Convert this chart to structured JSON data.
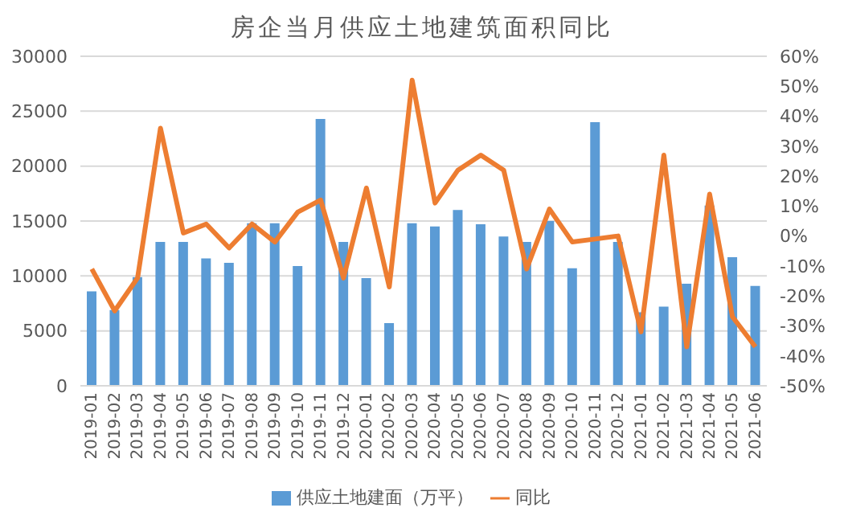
{
  "chart_data": {
    "type": "bar",
    "title": "房企当月供应土地建筑面积同比",
    "categories": [
      "2019-01",
      "2019-02",
      "2019-03",
      "2019-04",
      "2019-05",
      "2019-06",
      "2019-07",
      "2019-08",
      "2019-09",
      "2019-10",
      "2019-11",
      "2019-12",
      "2020-01",
      "2020-02",
      "2020-03",
      "2020-04",
      "2020-05",
      "2020-06",
      "2020-07",
      "2020-08",
      "2020-09",
      "2020-10",
      "2020-11",
      "2020-12",
      "2021-01",
      "2021-02",
      "2021-03",
      "2021-04",
      "2021-05",
      "2021-06"
    ],
    "series": [
      {
        "name": "供应土地建面（万平）",
        "color": "#5b9bd5",
        "values": [
          8600,
          6900,
          9900,
          13100,
          13100,
          11600,
          11200,
          14800,
          14800,
          10900,
          24300,
          13100,
          9800,
          5700,
          14800,
          14500,
          16000,
          14700,
          13600,
          13100,
          15000,
          10700,
          24000,
          13100,
          6700,
          7200,
          9300,
          16400,
          11700,
          9100
        ]
      },
      {
        "name": "同比",
        "type": "line",
        "axis": "y2",
        "color": "#ed7d31",
        "values": [
          -11,
          -25,
          -14,
          36,
          1,
          4,
          -4,
          4,
          -2,
          8,
          12,
          -14,
          16,
          -17,
          52,
          11,
          22,
          27,
          22,
          -11,
          9,
          -2,
          -1,
          0,
          -32,
          27,
          -37,
          14,
          -27,
          -37
        ]
      }
    ],
    "ylim": [
      0,
      30000
    ],
    "yticks": [
      0,
      5000,
      10000,
      15000,
      20000,
      25000,
      30000
    ],
    "y2lim": [
      -50,
      60
    ],
    "y2ticks": [
      {
        "value": -50,
        "label": "-50%"
      },
      {
        "value": -40,
        "label": "-40%"
      },
      {
        "value": -30,
        "label": "-30%"
      },
      {
        "value": -20,
        "label": "-20%"
      },
      {
        "value": -10,
        "label": "-10%"
      },
      {
        "value": 0,
        "label": "0%"
      },
      {
        "value": 10,
        "label": "10%"
      },
      {
        "value": 20,
        "label": "20%"
      },
      {
        "value": 30,
        "label": "30%"
      },
      {
        "value": 40,
        "label": "40%"
      },
      {
        "value": 50,
        "label": "50%"
      },
      {
        "value": 60,
        "label": "60%"
      }
    ],
    "grid": "y",
    "legend": "bottom",
    "marker": "none",
    "line_style": "solid"
  }
}
